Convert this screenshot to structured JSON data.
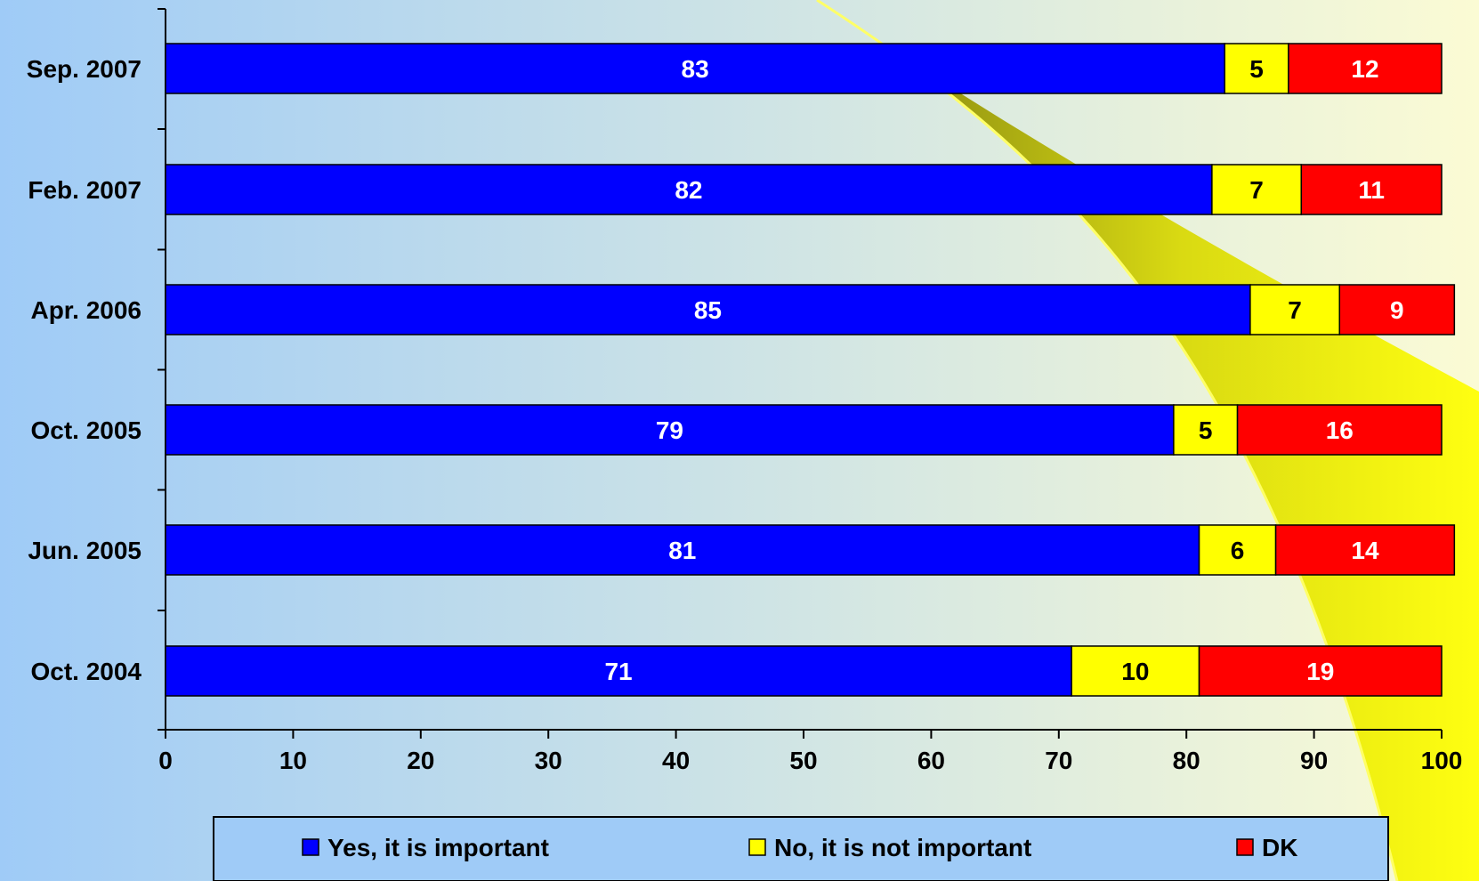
{
  "chart_data": {
    "type": "bar",
    "orientation": "horizontal",
    "stacked": true,
    "title": "",
    "xlabel": "",
    "ylabel": "",
    "xlim": [
      0,
      100
    ],
    "xticks": [
      "0",
      "10",
      "20",
      "30",
      "40",
      "50",
      "60",
      "70",
      "80",
      "90",
      "100"
    ],
    "categories": [
      "Sep. 2007",
      "Feb. 2007",
      "Apr. 2006",
      "Oct. 2005",
      "Jun. 2005",
      "Oct. 2004"
    ],
    "series": [
      {
        "name": "Yes, it is important",
        "color": "#0000FF",
        "values": [
          83,
          82,
          85,
          79,
          81,
          71
        ]
      },
      {
        "name": "No, it is not important",
        "color": "#FFFF00",
        "values": [
          5,
          7,
          7,
          5,
          6,
          10
        ]
      },
      {
        "name": "DK",
        "color": "#FF0000",
        "values": [
          12,
          11,
          9,
          16,
          14,
          19
        ]
      }
    ],
    "legend_position": "bottom",
    "grid": false
  },
  "colors": {
    "background_left": "#9FCBF7",
    "background_right": "#FBFBD4",
    "swoosh": "#F2F200",
    "swoosh_shadow": "#7A7A00",
    "legend_bg": "#9FCBF7"
  }
}
